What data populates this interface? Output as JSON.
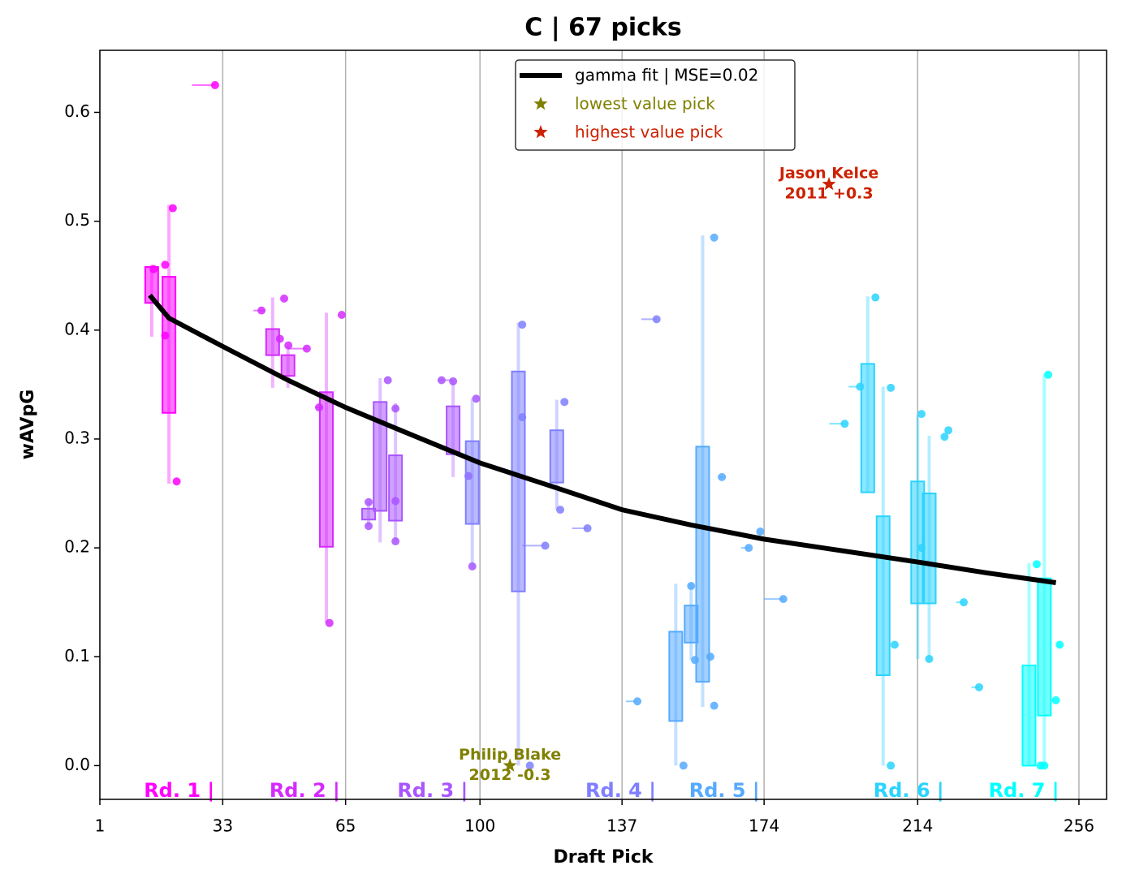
{
  "chart_data": {
    "type": "draft-box-scatter",
    "title": "C | 67 picks",
    "xlabel": "Draft Pick",
    "ylabel": "wAVpG",
    "xlim": [
      1,
      263.2
    ],
    "ylim": [
      -0.031,
      0.657
    ],
    "xticks": [
      1,
      33,
      65,
      100,
      137,
      174,
      214,
      256
    ],
    "yticks": [
      {
        "value": 0,
        "label": "0.0"
      },
      0.1,
      0.2,
      0.3,
      0.4,
      0.5,
      0.6
    ],
    "grid": "x",
    "fit": {
      "name": "gamma fit | MSE=0.02",
      "color": "#000000",
      "x": [
        14,
        19,
        33,
        50,
        65,
        80,
        100,
        120,
        137,
        155,
        174,
        195,
        214,
        232,
        250
      ],
      "values": [
        0.432,
        0.411,
        0.385,
        0.354,
        0.329,
        0.307,
        0.278,
        0.255,
        0.235,
        0.221,
        0.208,
        0.197,
        0.187,
        0.177,
        0.168
      ]
    },
    "lowest": {
      "name": "lowest value pick",
      "color": "#808000",
      "x": 107.8,
      "y": 0,
      "label": [
        "Philip Blake",
        "2012 -0.3"
      ]
    },
    "highest": {
      "name": "highest value pick",
      "color": "#cc2200",
      "x": 190.9,
      "y": 0.534,
      "label": [
        "Jason Kelce",
        "2011 +0.3"
      ]
    },
    "rounds": [
      {
        "label": "Rd. 1 |",
        "end": 30,
        "color": "#ff00ff",
        "x": [
          15,
          18,
          18,
          20,
          21,
          31
        ],
        "values": [
          0.456,
          0.46,
          0.395,
          0.512,
          0.261,
          0.625
        ],
        "boxes": [
          {
            "x": 14.5,
            "q1": 0.425,
            "q3": 0.458,
            "lo": 0.394,
            "hi": 0.46
          },
          {
            "x": 19,
            "q1": 0.324,
            "q3": 0.449,
            "lo": 0.259,
            "hi": 0.515
          }
        ],
        "ranges": [
          {
            "x0": 25,
            "x1": 31,
            "y": 0.625
          }
        ]
      },
      {
        "label": "Rd. 2 |",
        "end": 62.7,
        "color": "#d52aff",
        "x": [
          43.1,
          47.9,
          49,
          50.1,
          54.9,
          58.1,
          60.8,
          64
        ],
        "values": [
          0.418,
          0.392,
          0.429,
          0.386,
          0.383,
          0.329,
          0.131,
          0.414
        ],
        "boxes": [
          {
            "x": 46,
            "q1": 0.377,
            "q3": 0.401,
            "lo": 0.347,
            "hi": 0.43
          },
          {
            "x": 50,
            "q1": 0.358,
            "q3": 0.377,
            "lo": 0.347,
            "hi": 0.386
          },
          {
            "x": 60,
            "q1": 0.201,
            "q3": 0.343,
            "lo": 0.131,
            "hi": 0.416
          }
        ],
        "ranges": [
          {
            "x0": 41,
            "x1": 44,
            "y": 0.418
          },
          {
            "x0": 50,
            "x1": 55,
            "y": 0.383
          },
          {
            "x0": 57,
            "x1": 59,
            "y": 0.329
          }
        ]
      },
      {
        "label": "Rd. 3 |",
        "end": 96,
        "color": "#aa55ff",
        "x": [
          71,
          71,
          76,
          78,
          78,
          78,
          90,
          93,
          97,
          98,
          99
        ],
        "values": [
          0.242,
          0.22,
          0.354,
          0.328,
          0.243,
          0.206,
          0.354,
          0.353,
          0.266,
          0.183,
          0.337
        ],
        "boxes": [
          {
            "x": 71,
            "q1": 0.226,
            "q3": 0.236,
            "lo": 0.22,
            "hi": 0.242
          },
          {
            "x": 74,
            "q1": 0.234,
            "q3": 0.334,
            "lo": 0.205,
            "hi": 0.356
          },
          {
            "x": 78,
            "q1": 0.225,
            "q3": 0.285,
            "lo": 0.206,
            "hi": 0.333
          },
          {
            "x": 93,
            "q1": 0.286,
            "q3": 0.33,
            "lo": 0.265,
            "hi": 0.354
          }
        ],
        "ranges": [
          {
            "x0": 89,
            "x1": 93,
            "y": 0.354
          }
        ]
      },
      {
        "label": "Rd. 4 |",
        "end": 145,
        "color": "#7f7fff",
        "x": [
          111,
          111,
          113,
          117,
          120.9,
          122,
          128,
          146
        ],
        "values": [
          0.405,
          0.32,
          0,
          0.202,
          0.235,
          0.334,
          0.218,
          0.41
        ],
        "boxes": [
          {
            "x": 98,
            "q1": 0.222,
            "q3": 0.298,
            "lo": 0.183,
            "hi": 0.337
          },
          {
            "x": 110,
            "q1": 0.16,
            "q3": 0.362,
            "lo": 0,
            "hi": 0.407
          },
          {
            "x": 120,
            "q1": 0.26,
            "q3": 0.308,
            "lo": 0.235,
            "hi": 0.336
          }
        ],
        "ranges": [
          {
            "x0": 111,
            "x1": 117,
            "y": 0.202
          },
          {
            "x0": 124,
            "x1": 128,
            "y": 0.218
          },
          {
            "x0": 142,
            "x1": 146,
            "y": 0.41
          }
        ]
      },
      {
        "label": "Rd. 5 |",
        "end": 172,
        "color": "#55aaff",
        "x": [
          141,
          153,
          155,
          156,
          160,
          161,
          161,
          163,
          170,
          173,
          179
        ],
        "values": [
          0.059,
          0,
          0.165,
          0.097,
          0.1,
          0.485,
          0.055,
          0.265,
          0.2,
          0.215,
          0.153
        ],
        "boxes": [
          {
            "x": 151,
            "q1": 0.041,
            "q3": 0.123,
            "lo": 0,
            "hi": 0.167
          },
          {
            "x": 155,
            "q1": 0.113,
            "q3": 0.147,
            "lo": 0.097,
            "hi": 0.167
          },
          {
            "x": 158,
            "q1": 0.077,
            "q3": 0.293,
            "lo": 0.054,
            "hi": 0.487
          }
        ],
        "ranges": [
          {
            "x0": 138,
            "x1": 141,
            "y": 0.059
          },
          {
            "x0": 162,
            "x1": 164,
            "y": 0.265
          },
          {
            "x0": 168,
            "x1": 170,
            "y": 0.2
          },
          {
            "x0": 174,
            "x1": 179,
            "y": 0.153
          }
        ]
      },
      {
        "label": "Rd. 6 |",
        "end": 220,
        "color": "#2ad4ff",
        "x": [
          195,
          199,
          203,
          207,
          207,
          208,
          215,
          215,
          217,
          221,
          222,
          226,
          230
        ],
        "values": [
          0.314,
          0.348,
          0.43,
          0.347,
          0,
          0.111,
          0.323,
          0.2,
          0.098,
          0.302,
          0.308,
          0.15,
          0.072
        ],
        "boxes": [
          {
            "x": 201,
            "q1": 0.251,
            "q3": 0.369,
            "lo": 0.251,
            "hi": 0.431
          },
          {
            "x": 205,
            "q1": 0.083,
            "q3": 0.229,
            "lo": 0,
            "hi": 0.348
          },
          {
            "x": 214,
            "q1": 0.149,
            "q3": 0.261,
            "lo": 0.098,
            "hi": 0.322
          },
          {
            "x": 217,
            "q1": 0.149,
            "q3": 0.25,
            "lo": 0.098,
            "hi": 0.303
          }
        ],
        "ranges": [
          {
            "x0": 191,
            "x1": 195,
            "y": 0.314
          },
          {
            "x0": 196,
            "x1": 199,
            "y": 0.348
          },
          {
            "x0": 224,
            "x1": 226,
            "y": 0.15
          },
          {
            "x0": 228,
            "x1": 230,
            "y": 0.072
          }
        ]
      },
      {
        "label": "Rd. 7 |",
        "end": 250,
        "color": "#00ffff",
        "x": [
          245,
          246,
          247,
          248,
          250,
          251
        ],
        "values": [
          0.185,
          0,
          0,
          0.359,
          0.06,
          0.111
        ],
        "boxes": [
          {
            "x": 243,
            "q1": 0,
            "q3": 0.092,
            "lo": 0,
            "hi": 0.186
          },
          {
            "x": 247,
            "q1": 0.046,
            "q3": 0.172,
            "lo": 0,
            "hi": 0.36
          }
        ],
        "ranges": []
      }
    ]
  }
}
